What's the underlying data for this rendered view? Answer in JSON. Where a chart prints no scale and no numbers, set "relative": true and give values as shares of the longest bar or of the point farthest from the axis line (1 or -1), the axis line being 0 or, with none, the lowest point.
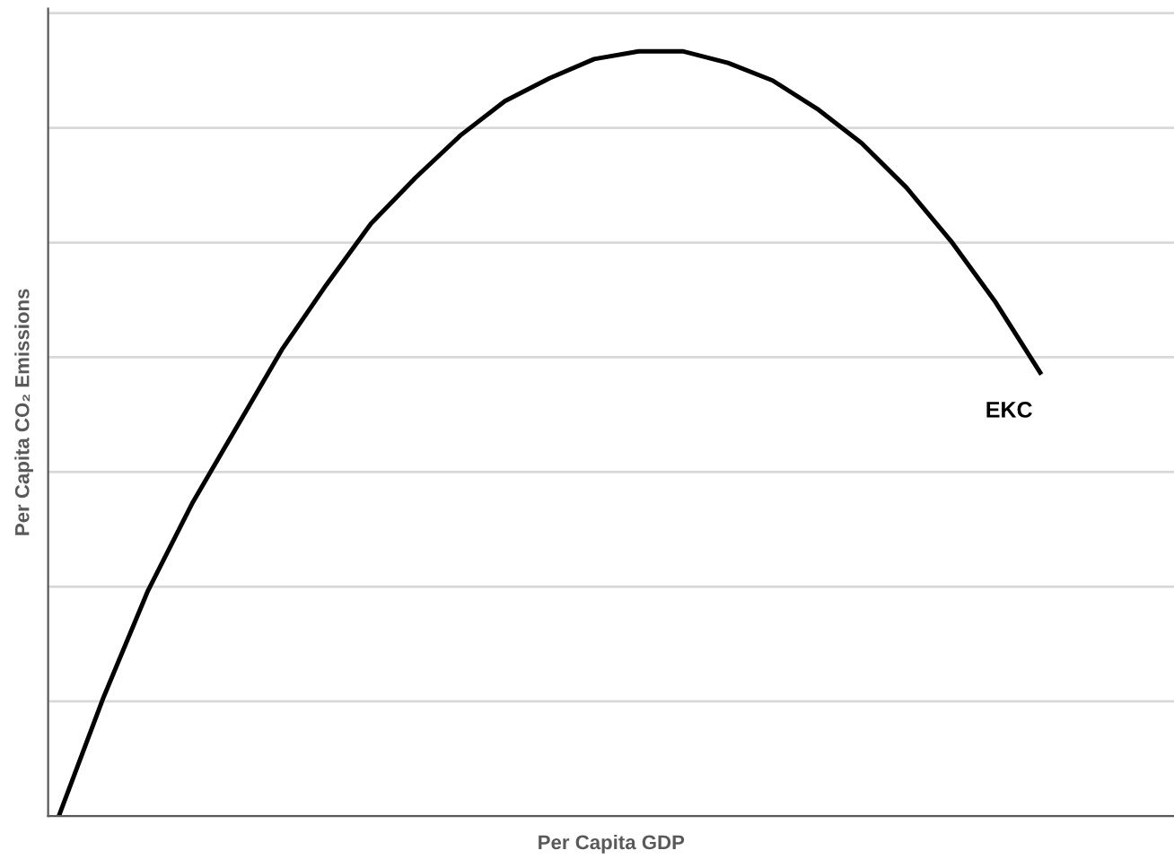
{
  "chart_data": {
    "type": "line",
    "relative": true,
    "xlabel": "Per Capita GDP",
    "ylabel": "Per Capita CO₂ Emissions",
    "categories": [
      null,
      null,
      null,
      null,
      null,
      null,
      null,
      null,
      null,
      null,
      null,
      null,
      null,
      null,
      null,
      null,
      null,
      null,
      null,
      null,
      null,
      null,
      null
    ],
    "series": [
      {
        "color": "#000000",
        "values": [
          0,
          0.155,
          0.295,
          0.41,
          0.51,
          0.61,
          0.695,
          0.775,
          0.835,
          0.89,
          0.935,
          0.965,
          0.99,
          1,
          1,
          0.985,
          0.962,
          0.925,
          0.88,
          0.822,
          0.752,
          0.672,
          0.58
        ]
      }
    ],
    "annotations": [
      "EKC"
    ],
    "grid": "y",
    "legend": false,
    "marker": "none",
    "line_style": "solid"
  }
}
